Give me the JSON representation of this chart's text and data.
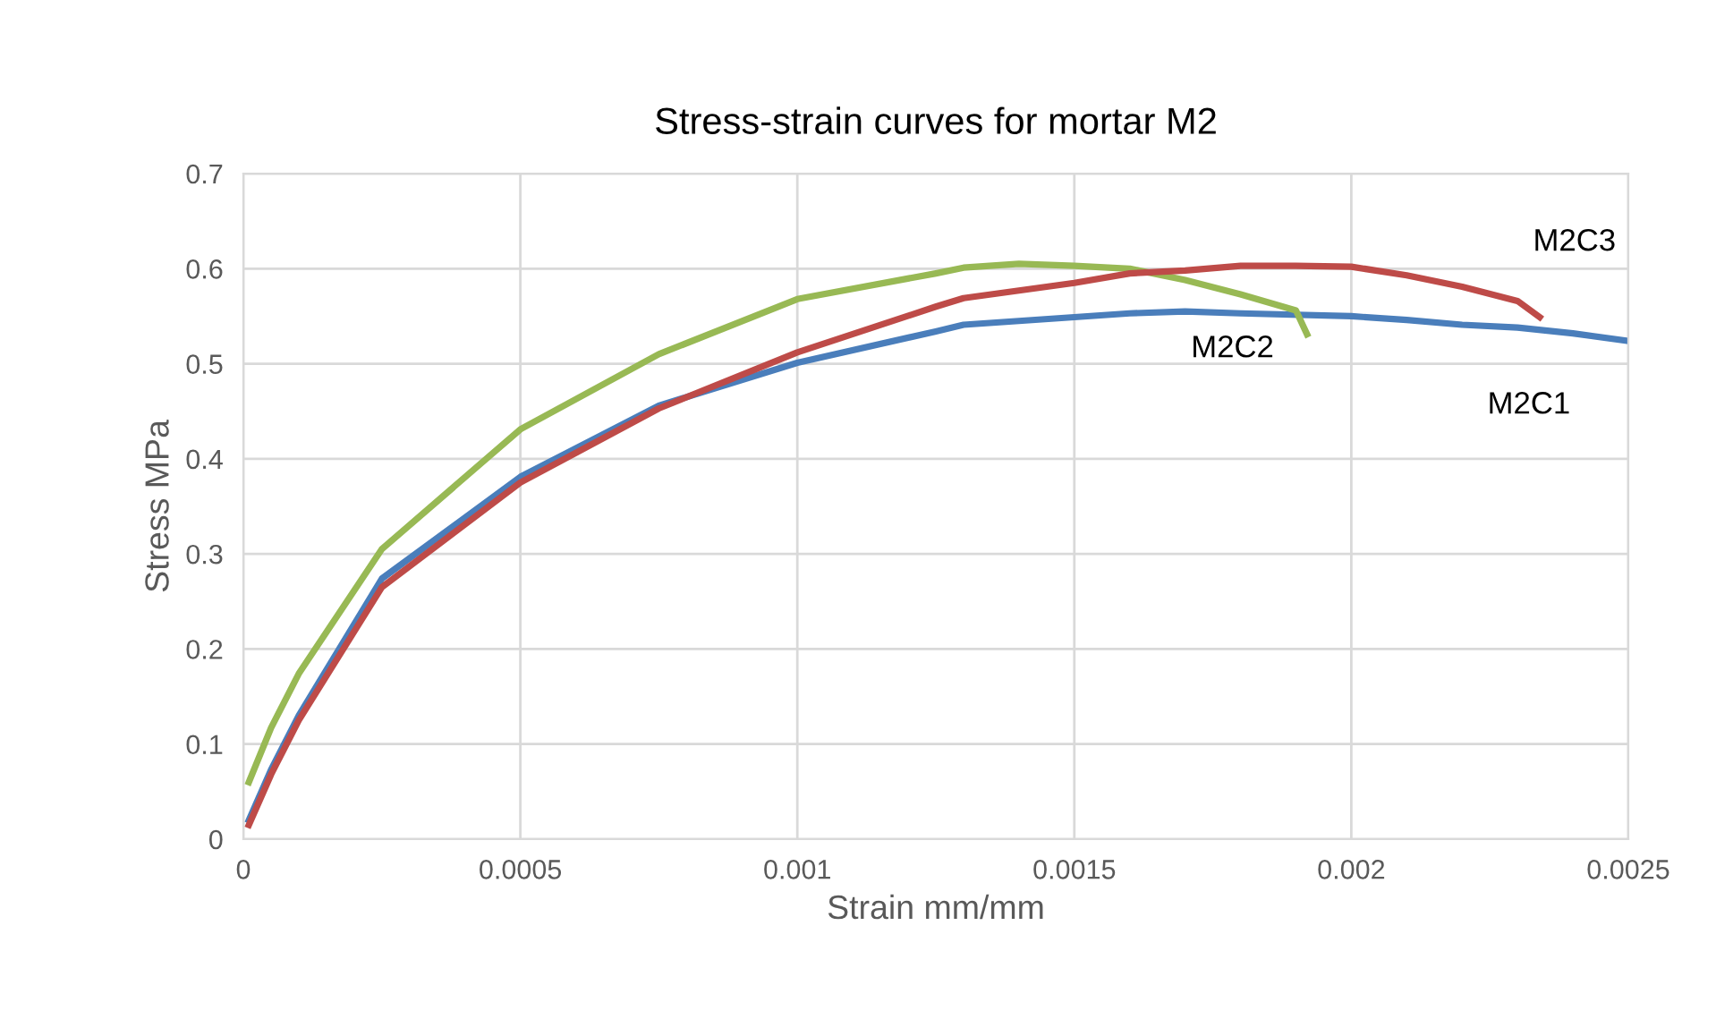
{
  "chart_data": {
    "type": "line",
    "title": "Stress-strain curves for mortar M2",
    "xlabel": "Strain mm/mm",
    "ylabel": "Stress MPa",
    "xlim": [
      0,
      0.0025
    ],
    "xticks": [
      0,
      0.0005,
      0.001,
      0.0015,
      0.002,
      0.0025
    ],
    "ylim": [
      0,
      0.7
    ],
    "yticks": [
      0,
      0.1,
      0.2,
      0.3,
      0.4,
      0.5,
      0.6,
      0.7
    ],
    "grid": true,
    "legend": false,
    "marker": "none",
    "line_style": "solid",
    "series": [
      {
        "name": "M2C1",
        "color": "#4a7ebb",
        "x": [
          1e-05,
          5e-05,
          0.0001,
          0.00025,
          0.0005,
          0.00075,
          0.001,
          0.00125,
          0.0013,
          0.0015,
          0.0016,
          0.0017,
          0.0018,
          0.002,
          0.0021,
          0.0022,
          0.0023,
          0.0024,
          0.0025
        ],
        "values": [
          0.02,
          0.073,
          0.13,
          0.274,
          0.381,
          0.456,
          0.501,
          0.534,
          0.541,
          0.549,
          0.553,
          0.555,
          0.553,
          0.55,
          0.546,
          0.541,
          0.538,
          0.532,
          0.524
        ]
      },
      {
        "name": "M2C2",
        "color": "#98b954",
        "x": [
          1e-05,
          5e-05,
          0.0001,
          0.00025,
          0.0005,
          0.00075,
          0.001,
          0.00125,
          0.0013,
          0.0014,
          0.0015,
          0.0016,
          0.0017,
          0.0018,
          0.0019,
          0.00192
        ],
        "values": [
          0.06,
          0.117,
          0.174,
          0.305,
          0.431,
          0.51,
          0.568,
          0.595,
          0.601,
          0.605,
          0.603,
          0.6,
          0.588,
          0.573,
          0.556,
          0.531
        ]
      },
      {
        "name": "M2C3",
        "color": "#be4b48",
        "x": [
          1e-05,
          5e-05,
          0.0001,
          0.00025,
          0.0005,
          0.00075,
          0.001,
          0.00125,
          0.0013,
          0.0015,
          0.0016,
          0.0017,
          0.0018,
          0.0019,
          0.002,
          0.0021,
          0.0022,
          0.0023,
          0.00234
        ],
        "values": [
          0.015,
          0.068,
          0.125,
          0.265,
          0.375,
          0.453,
          0.512,
          0.56,
          0.569,
          0.585,
          0.595,
          0.598,
          0.603,
          0.603,
          0.602,
          0.593,
          0.581,
          0.566,
          0.549
        ]
      }
    ]
  }
}
